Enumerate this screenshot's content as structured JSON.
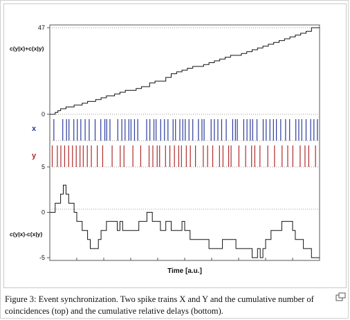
{
  "caption": "Figure 3: Event synchronization. Two spike trains X and Y and the cumulative number of coincidences (top) and the cumulative relative delays (bottom).",
  "expand_icon": "enlarge-icon",
  "colors": {
    "x_spikes": "#2a3a9c",
    "y_spikes": "#b02a2a",
    "trace": "#111111",
    "frame": "#555555",
    "separator": "#999999"
  },
  "chart_data": {
    "type": "line",
    "xlabel": "Time   [a.u.]",
    "xlim": [
      0,
      100
    ],
    "panels": [
      {
        "name": "c(y|x)+c(x|y)",
        "ylabel": "c(y|x)+c(x|y)",
        "ylim": [
          0,
          47
        ],
        "yticks": [
          0,
          47
        ],
        "step_series": {
          "x": [
            0,
            2,
            3,
            4,
            6,
            7,
            9,
            10,
            12,
            14,
            16,
            17,
            19,
            21,
            22,
            24,
            26,
            28,
            30,
            32,
            34,
            35,
            37,
            39,
            41,
            43,
            45,
            47,
            49,
            51,
            53,
            55,
            57,
            59,
            61,
            63,
            65,
            67,
            69,
            71,
            73,
            75,
            77,
            79,
            81,
            83,
            85,
            87,
            89,
            91,
            93,
            95,
            97,
            100
          ],
          "y": [
            0,
            1,
            2,
            3,
            4,
            4,
            5,
            5,
            6,
            7,
            7,
            8,
            9,
            10,
            10,
            11,
            12,
            13,
            13,
            14,
            15,
            15,
            17,
            18,
            18,
            20,
            22,
            23,
            24,
            25,
            26,
            26,
            27,
            28,
            29,
            30,
            31,
            32,
            32,
            33,
            34,
            35,
            36,
            37,
            38,
            39,
            40,
            41,
            42,
            43,
            44,
            45,
            47,
            47
          ]
        }
      },
      {
        "name": "x",
        "label": "x",
        "spikes": [
          1.5,
          4.8,
          6.2,
          7.1,
          8.9,
          10.2,
          11.5,
          13.1,
          14.6,
          16.8,
          18.9,
          20.4,
          21.1,
          22.3,
          25.2,
          26.7,
          27.9,
          29.3,
          30.1,
          31.4,
          32.6,
          35.9,
          37.1,
          38.6,
          39.4,
          41.1,
          42.5,
          43.8,
          45.7,
          46.6,
          48.2,
          49.3,
          50.2,
          51.6,
          53.0,
          55.1,
          56.4,
          57.2,
          59.8,
          61.0,
          62.3,
          63.7,
          65.4,
          67.8,
          68.8,
          69.5,
          71.9,
          73.1,
          74.3,
          75.2,
          76.8,
          79.1,
          80.2,
          81.6,
          82.9,
          84.0,
          85.6,
          87.4,
          88.9,
          91.2,
          92.3,
          93.4,
          95.0,
          96.7,
          97.9,
          99.2
        ]
      },
      {
        "name": "y",
        "label": "y",
        "spikes": [
          0.9,
          2.8,
          4.1,
          5.5,
          7.0,
          8.4,
          9.8,
          11.2,
          12.4,
          13.9,
          15.4,
          17.6,
          19.6,
          23.1,
          26.1,
          27.5,
          30.8,
          33.7,
          36.8,
          38.2,
          39.8,
          40.7,
          42.9,
          44.5,
          46.2,
          47.8,
          48.8,
          50.6,
          52.1,
          54.0,
          56.9,
          58.5,
          60.4,
          62.9,
          64.2,
          66.3,
          67.2,
          70.1,
          72.6,
          74.8,
          76.0,
          77.9,
          80.8,
          83.3,
          86.1,
          88.2,
          90.1,
          92.8,
          94.6,
          96.0,
          98.5
        ]
      },
      {
        "name": "c(y|x)-c(x|y)",
        "ylabel": "c(y|x)-c(x|y)",
        "ylim": [
          -5,
          5
        ],
        "yticks": [
          5,
          0,
          -5
        ],
        "step_series": {
          "x": [
            0,
            2,
            4,
            5,
            6,
            7,
            8,
            8.5,
            9,
            10,
            11,
            12,
            14,
            15,
            17,
            18,
            19,
            21,
            23,
            25,
            26,
            27,
            30,
            33,
            35,
            36,
            38,
            39,
            41,
            43,
            45,
            47,
            48,
            49,
            50,
            52,
            54,
            57,
            59,
            62,
            64,
            66,
            69,
            71,
            73,
            75,
            77,
            78,
            79,
            80,
            82,
            84,
            86,
            88,
            90,
            91,
            93,
            94,
            95,
            96,
            97,
            98,
            100
          ],
          "y": [
            0,
            1,
            2,
            3,
            2,
            1,
            1,
            1,
            0,
            -1,
            -1,
            -2,
            -3,
            -4,
            -4,
            -3,
            -2,
            -1,
            -1,
            -2,
            -1,
            -2,
            -2,
            -1,
            -1,
            0,
            -1,
            -1,
            -2,
            -1,
            -2,
            -2,
            -2,
            -1,
            -2,
            -3,
            -3,
            -3,
            -4,
            -4,
            -3,
            -3,
            -4,
            -4,
            -4,
            -5,
            -4,
            -5,
            -4,
            -3,
            -2,
            -2,
            -1,
            -1,
            -2,
            -3,
            -3,
            -4,
            -4,
            -4,
            -5,
            -5,
            -5
          ]
        }
      }
    ]
  }
}
